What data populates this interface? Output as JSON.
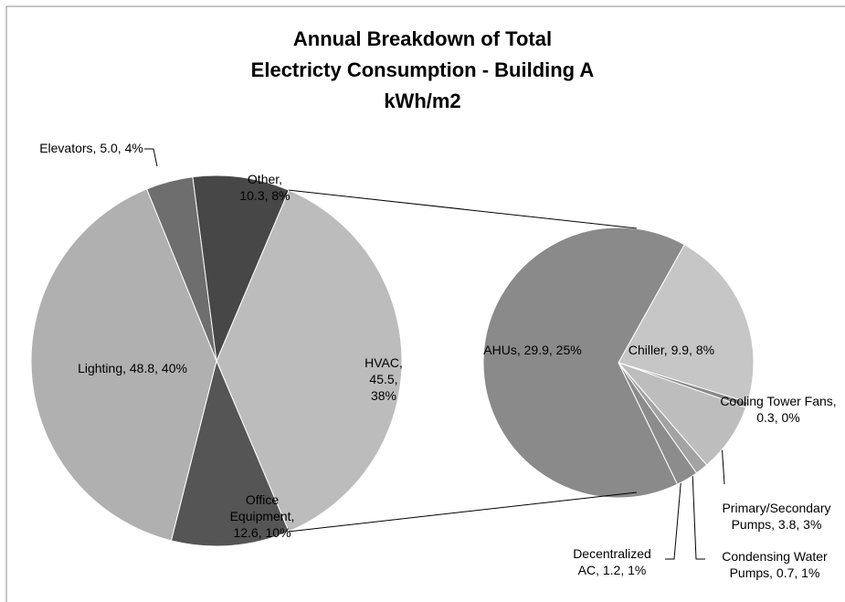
{
  "chart_data": {
    "type": "pie",
    "title": [
      "Annual Breakdown of Total",
      "Electricty Consumption - Building A",
      "kWh/m2"
    ],
    "categories": [
      "HVAC",
      "Office Equipment",
      "Lighting",
      "Elevators",
      "Other"
    ],
    "values": [
      45.5,
      12.6,
      48.8,
      5.0,
      10.3
    ],
    "value_labels": [
      "HVAC, 45.5, 38%",
      "Office Equipment, 12.6, 10%",
      "Lighting, 48.8, 40%",
      "Elevators, 5.0, 4%",
      "Other, 10.3, 8%"
    ],
    "colors": [
      "#bcbcbc",
      "#555555",
      "#b0b0b0",
      "#6e6e6e",
      "#474747"
    ],
    "breakdown": {
      "categories": [
        "Chiller",
        "Cooling Tower Fans",
        "Primary/Secondary Pumps",
        "Condensing Water Pumps",
        "Decentralized AC",
        "AHUs"
      ],
      "values": [
        9.9,
        0.3,
        3.8,
        0.7,
        1.2,
        29.9
      ],
      "value_labels": [
        "Chiller, 9.9, 8%",
        "Cooling Tower Fans, 0.3, 0%",
        "Primary/Secondary Pumps, 3.8, 3%",
        "Condensing Water Pumps, 0.7, 1%",
        "Decentralized AC, 1.2, 1%",
        "AHUs, 29.9, 25%"
      ],
      "colors": [
        "#c6c6c6",
        "#8a8a8a",
        "#bdbdbd",
        "#a3a3a3",
        "#8c8c8c",
        "#8a8a8a"
      ]
    }
  }
}
